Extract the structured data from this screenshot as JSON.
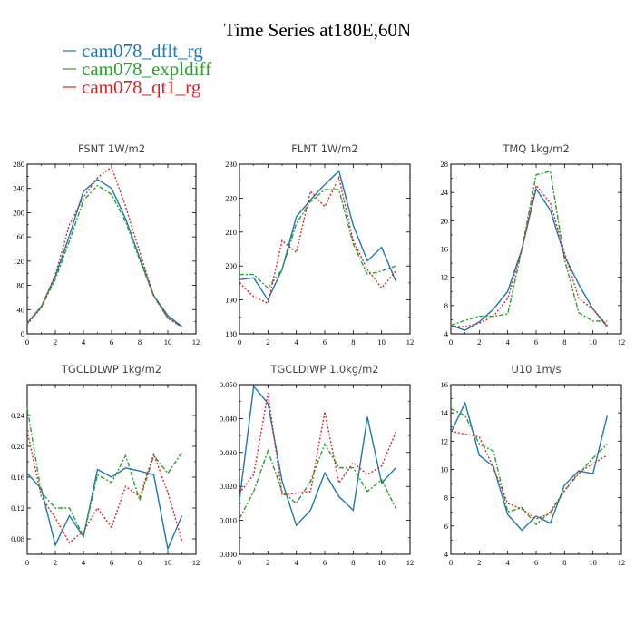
{
  "figure": {
    "title": "Time Series at180E,60N"
  },
  "legend": [
    {
      "label": "cam078_dflt_rg",
      "color": "#1f77b4"
    },
    {
      "label": "cam078_expldiff",
      "color": "#2ca02c"
    },
    {
      "label": "cam078_qt1_rg",
      "color": "#d62728"
    }
  ],
  "chart_data": [
    {
      "type": "line",
      "title": "FSNT   1W/m2",
      "xlim": [
        0,
        12
      ],
      "ylim": [
        0,
        280
      ],
      "xticks": [
        0,
        2,
        4,
        6,
        8,
        10,
        12
      ],
      "yticks": [
        0,
        40,
        80,
        120,
        160,
        200,
        240,
        280
      ],
      "ytick_labels": [
        "0",
        "40",
        "80",
        "120",
        "160",
        "200",
        "240",
        "280"
      ],
      "x": [
        0,
        1,
        2,
        3,
        4,
        5,
        6,
        7,
        8,
        9,
        10,
        11
      ],
      "series": [
        {
          "name": "cam078_dflt_rg",
          "values": [
            18,
            45,
            95,
            162,
            235,
            255,
            240,
            190,
            125,
            63,
            30,
            12
          ]
        },
        {
          "name": "cam078_expldiff",
          "values": [
            17,
            44,
            90,
            153,
            220,
            245,
            230,
            185,
            122,
            62,
            26,
            11
          ]
        },
        {
          "name": "cam078_qt1_rg",
          "values": [
            16,
            43,
            98,
            180,
            225,
            258,
            275,
            210,
            135,
            63,
            26,
            12
          ]
        }
      ]
    },
    {
      "type": "line",
      "title": "FLNT   1W/m2",
      "xlim": [
        0,
        12
      ],
      "ylim": [
        180,
        230
      ],
      "xticks": [
        0,
        2,
        4,
        6,
        8,
        10,
        12
      ],
      "yticks": [
        180,
        190,
        200,
        210,
        220,
        230
      ],
      "ytick_labels": [
        "180",
        "190",
        "200",
        "210",
        "220",
        "230"
      ],
      "x": [
        0,
        1,
        2,
        3,
        4,
        5,
        6,
        7,
        8,
        9,
        10,
        11
      ],
      "series": [
        {
          "name": "cam078_dflt_rg",
          "values": [
            196,
            196.5,
            190,
            199,
            214.5,
            219.5,
            224,
            228,
            212,
            201.5,
            205.5,
            195.5
          ]
        },
        {
          "name": "cam078_expldiff",
          "values": [
            197.5,
            197.5,
            193.5,
            199,
            212.5,
            219,
            222.5,
            222.5,
            206.5,
            197.5,
            198.5,
            200
          ]
        },
        {
          "name": "cam078_qt1_rg",
          "values": [
            195,
            191,
            189,
            207.5,
            204,
            222,
            217.5,
            226,
            207.5,
            199,
            193.5,
            198.5
          ]
        }
      ]
    },
    {
      "type": "line",
      "title": "TMQ   1kg/m2",
      "xlim": [
        0,
        12
      ],
      "ylim": [
        4,
        28
      ],
      "xticks": [
        0,
        2,
        4,
        6,
        8,
        10,
        12
      ],
      "yticks": [
        4,
        8,
        12,
        16,
        20,
        24,
        28
      ],
      "ytick_labels": [
        "4",
        "8",
        "12",
        "16",
        "20",
        "24",
        "28"
      ],
      "x": [
        0,
        1,
        2,
        3,
        4,
        5,
        6,
        7,
        8,
        9,
        10,
        11
      ],
      "series": [
        {
          "name": "cam078_dflt_rg",
          "values": [
            5.2,
            4.5,
            5.7,
            7.5,
            10,
            16,
            24.5,
            21.5,
            15,
            11,
            7.5,
            5
          ]
        },
        {
          "name": "cam078_expldiff",
          "values": [
            5.2,
            5.9,
            6.5,
            6.5,
            6.8,
            16,
            26.5,
            27,
            14.5,
            7,
            5.8,
            5.8
          ]
        },
        {
          "name": "cam078_qt1_rg",
          "values": [
            5.1,
            5,
            5.5,
            6.5,
            9,
            16,
            25,
            22.5,
            15.5,
            9,
            7.5,
            5.2
          ]
        }
      ]
    },
    {
      "type": "line",
      "title": "TGCLDLWP   1kg/m2",
      "xlim": [
        0,
        12
      ],
      "ylim": [
        0.06,
        0.28
      ],
      "xticks": [
        0,
        2,
        4,
        6,
        8,
        10,
        12
      ],
      "yticks": [
        0.08,
        0.12,
        0.16,
        0.2,
        0.24
      ],
      "ytick_labels": [
        "0.08",
        "0.12",
        "0.16",
        "0.20",
        "0.24"
      ],
      "x": [
        0,
        1,
        2,
        3,
        4,
        5,
        6,
        7,
        8,
        9,
        10,
        11
      ],
      "series": [
        {
          "name": "cam078_dflt_rg",
          "values": [
            0.165,
            0.145,
            0.072,
            0.11,
            0.083,
            0.17,
            0.16,
            0.172,
            0.168,
            0.163,
            0.067,
            0.11
          ]
        },
        {
          "name": "cam078_expldiff",
          "values": [
            0.25,
            0.14,
            0.12,
            0.12,
            0.083,
            0.163,
            0.153,
            0.188,
            0.13,
            0.188,
            0.165,
            0.192
          ]
        },
        {
          "name": "cam078_qt1_rg",
          "values": [
            0.22,
            0.135,
            0.107,
            0.075,
            0.09,
            0.12,
            0.095,
            0.148,
            0.135,
            0.19,
            0.14,
            0.078
          ]
        }
      ]
    },
    {
      "type": "line",
      "title": "TGCLDIWP   1.0kg/m2",
      "xlim": [
        0,
        12
      ],
      "ylim": [
        0,
        0.05
      ],
      "xticks": [
        0,
        2,
        4,
        6,
        8,
        10,
        12
      ],
      "yticks": [
        0,
        0.01,
        0.02,
        0.03,
        0.04,
        0.05
      ],
      "ytick_labels": [
        "0.000",
        "0.010",
        "0.020",
        "0.030",
        "0.040",
        "0.050"
      ],
      "x": [
        0,
        1,
        2,
        3,
        4,
        5,
        6,
        7,
        8,
        9,
        10,
        11
      ],
      "series": [
        {
          "name": "cam078_dflt_rg",
          "values": [
            0.016,
            0.0495,
            0.0445,
            0.0215,
            0.0085,
            0.013,
            0.024,
            0.017,
            0.013,
            0.0405,
            0.021,
            0.0255
          ]
        },
        {
          "name": "cam078_expldiff",
          "values": [
            0.0105,
            0.0185,
            0.0305,
            0.0185,
            0.015,
            0.0215,
            0.0325,
            0.0255,
            0.0255,
            0.0185,
            0.022,
            0.0135
          ]
        },
        {
          "name": "cam078_qt1_rg",
          "values": [
            0.018,
            0.0235,
            0.0475,
            0.0175,
            0.018,
            0.0185,
            0.042,
            0.021,
            0.027,
            0.0235,
            0.026,
            0.036
          ]
        }
      ]
    },
    {
      "type": "line",
      "title": "U10   1m/s",
      "xlim": [
        0,
        12
      ],
      "ylim": [
        4,
        16
      ],
      "xticks": [
        0,
        2,
        4,
        6,
        8,
        10,
        12
      ],
      "yticks": [
        4,
        6,
        8,
        10,
        12,
        14,
        16
      ],
      "ytick_labels": [
        "4",
        "6",
        "8",
        "10",
        "12",
        "14",
        "16"
      ],
      "x": [
        0,
        1,
        2,
        3,
        4,
        5,
        6,
        7,
        8,
        9,
        10,
        11
      ],
      "series": [
        {
          "name": "cam078_dflt_rg",
          "values": [
            12.6,
            14.7,
            11,
            10.2,
            6.8,
            5.7,
            6.7,
            6.2,
            8.9,
            9.9,
            9.7,
            13.8
          ]
        },
        {
          "name": "cam078_expldiff",
          "values": [
            14.3,
            13.8,
            11.8,
            11.3,
            7,
            7.3,
            6.1,
            7,
            8.5,
            9.7,
            10.8,
            11.8
          ]
        },
        {
          "name": "cam078_qt1_rg",
          "values": [
            12.7,
            12.5,
            12.3,
            10.1,
            7.6,
            7.2,
            6.5,
            6.9,
            8.5,
            9.8,
            10.4,
            11
          ]
        }
      ]
    }
  ]
}
